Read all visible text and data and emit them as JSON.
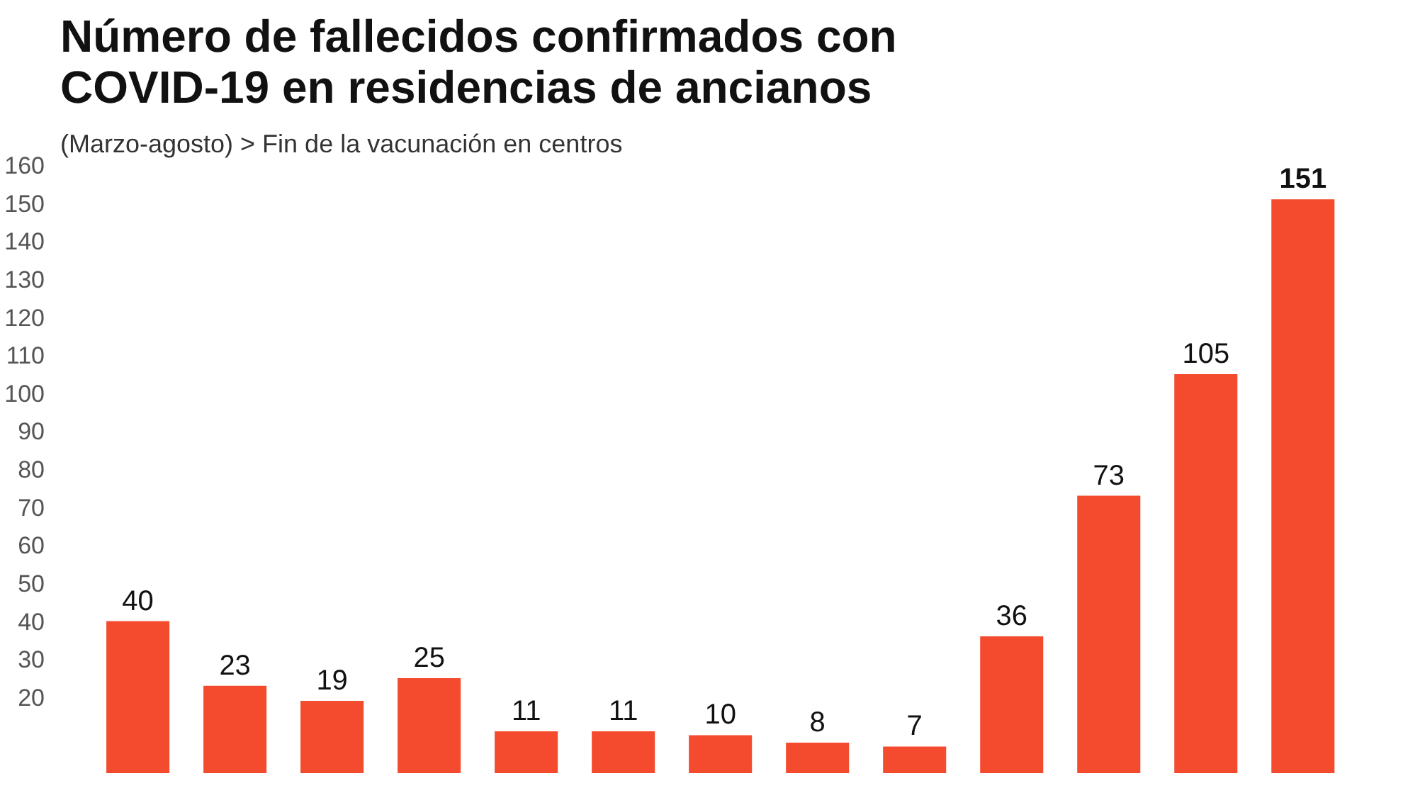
{
  "chart_data": {
    "type": "bar",
    "title": "Número de fallecidos confirmados con\nCOVID-19 en residencias de ancianos",
    "subtitle": "(Marzo-agosto) > Fin de la vacunación en centros",
    "categories": [
      null,
      null,
      null,
      null,
      null,
      null,
      null,
      null,
      null,
      null,
      null,
      null,
      null
    ],
    "values": [
      40,
      23,
      19,
      25,
      11,
      11,
      10,
      8,
      7,
      36,
      73,
      105,
      151
    ],
    "color": "#f44a2e",
    "ylim": [
      0,
      160
    ],
    "yticks": [
      20,
      30,
      40,
      50,
      60,
      70,
      80,
      90,
      100,
      110,
      120,
      130,
      140,
      150,
      160
    ],
    "grid": false,
    "data_labels": true,
    "tick_labels": "y"
  }
}
